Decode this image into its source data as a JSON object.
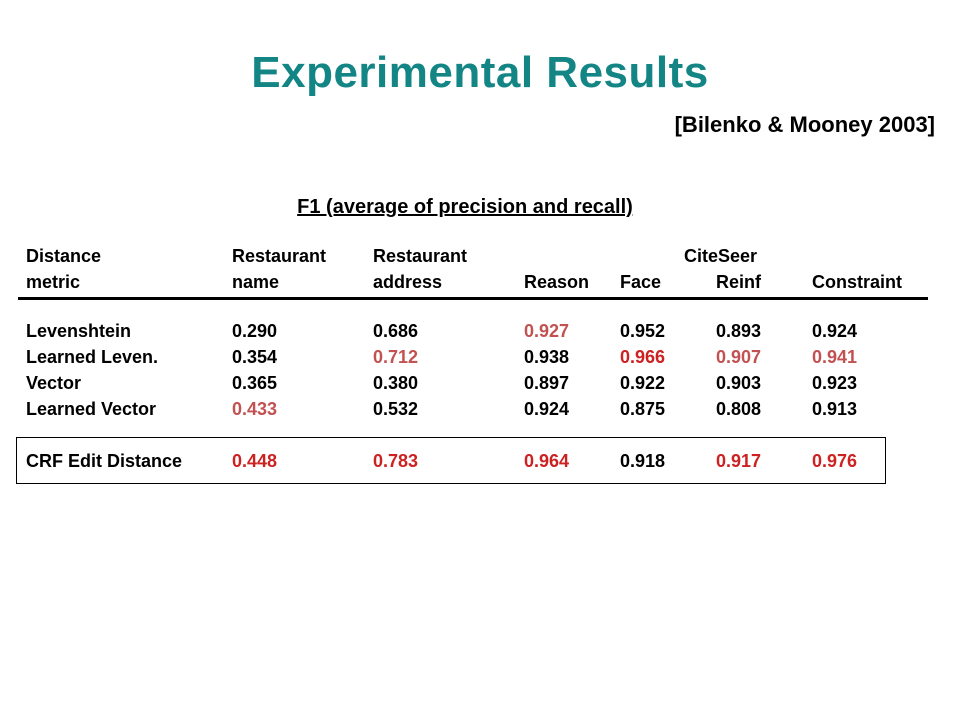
{
  "title": "Experimental Results",
  "citation": "[Bilenko & Mooney 2003]",
  "caption": "F1 (average of precision and recall)",
  "colors": {
    "title": "#138585",
    "highlight_red": "#cc2222",
    "highlight_pink": "#c25252"
  },
  "header": {
    "row1": [
      "Distance",
      "Restaurant",
      "Restaurant",
      "",
      "",
      "CiteSeer",
      ""
    ],
    "row2": [
      "metric",
      "name",
      "address",
      "Reason",
      "Face",
      "Reinf",
      "Constraint"
    ]
  },
  "rows": [
    {
      "metric": "Levenshtein",
      "values": [
        "0.290",
        "0.686",
        "0.927",
        "0.952",
        "0.893",
        "0.924"
      ]
    },
    {
      "metric": "Learned Leven.",
      "values": [
        "0.354",
        "0.712",
        "0.938",
        "0.966",
        "0.907",
        "0.941"
      ]
    },
    {
      "metric": "Vector",
      "values": [
        "0.365",
        "0.380",
        "0.897",
        "0.922",
        "0.903",
        "0.923"
      ]
    },
    {
      "metric": "Learned Vector",
      "values": [
        "0.433",
        "0.532",
        "0.924",
        "0.875",
        "0.808",
        "0.913"
      ]
    },
    {
      "metric": "CRF Edit Distance",
      "values": [
        "0.448",
        "0.783",
        "0.964",
        "0.918",
        "0.917",
        "0.976"
      ]
    }
  ]
}
